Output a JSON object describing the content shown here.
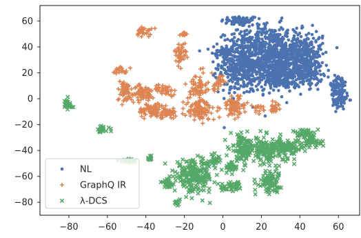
{
  "chart_data": {
    "type": "scatter",
    "title": "",
    "xlabel": "",
    "ylabel": "",
    "xlim": [
      -95,
      71
    ],
    "ylim": [
      -90,
      72
    ],
    "xticks": [
      -80,
      -60,
      -40,
      -20,
      0,
      20,
      40,
      60
    ],
    "yticks": [
      60,
      40,
      20,
      0,
      -20,
      -40,
      -60,
      -80
    ],
    "xtick_labels": [
      "−80",
      "−60",
      "−40",
      "−20",
      "0",
      "20",
      "40",
      "60"
    ],
    "ytick_labels": [
      "60",
      "40",
      "20",
      "0",
      "−20",
      "−40",
      "−60",
      "−80"
    ],
    "grid": false,
    "legend_position": "lower-left",
    "series": [
      {
        "name": "NL",
        "marker": "dot",
        "color": "#4c72b0",
        "clusters": [
          {
            "x": 9,
            "y": 60,
            "sx": 5,
            "sy": 2
          },
          {
            "x": 0,
            "y": 36,
            "sx": 3,
            "sy": 2
          },
          {
            "x": 10,
            "y": 28,
            "sx": 6,
            "sy": 12
          },
          {
            "x": 25,
            "y": 33,
            "sx": 6,
            "sy": 12
          },
          {
            "x": 40,
            "y": 36,
            "sx": 6,
            "sy": 8
          },
          {
            "x": 30,
            "y": 15,
            "sx": 5,
            "sy": 4
          },
          {
            "x": 42,
            "y": 22,
            "sx": 5,
            "sy": 6
          },
          {
            "x": 60,
            "y": 8,
            "sx": 2,
            "sy": 6
          },
          {
            "x": 61,
            "y": -2,
            "sx": 2,
            "sy": 3
          }
        ]
      },
      {
        "name": "GraphQ IR",
        "marker": "plus",
        "color": "#dd8452",
        "clusters": [
          {
            "x": -41,
            "y": 52,
            "sx": 2,
            "sy": 2
          },
          {
            "x": -20,
            "y": 50,
            "sx": 1,
            "sy": 1
          },
          {
            "x": -22,
            "y": 35,
            "sx": 1.5,
            "sy": 4
          },
          {
            "x": -53,
            "y": 22,
            "sx": 2,
            "sy": 1.5
          },
          {
            "x": -51,
            "y": 6,
            "sx": 2,
            "sy": 4
          },
          {
            "x": -42,
            "y": 4,
            "sx": 3,
            "sy": 3
          },
          {
            "x": -30,
            "y": 7,
            "sx": 3,
            "sy": 2
          },
          {
            "x": -36,
            "y": -9,
            "sx": 4,
            "sy": 3
          },
          {
            "x": -13,
            "y": 9,
            "sx": 2,
            "sy": 5
          },
          {
            "x": -12,
            "y": -9,
            "sx": 4,
            "sy": 4
          },
          {
            "x": -3,
            "y": 12,
            "sx": 1.5,
            "sy": 3
          },
          {
            "x": 6,
            "y": -6,
            "sx": 3,
            "sy": 4
          },
          {
            "x": 18,
            "y": -8,
            "sx": 1.5,
            "sy": 1.5
          },
          {
            "x": 27,
            "y": -6,
            "sx": 1.5,
            "sy": 2
          },
          {
            "x": -28,
            "y": -11,
            "sx": 3,
            "sy": 2
          }
        ]
      },
      {
        "name": "λ-DCS",
        "marker": "x",
        "color": "#55a868",
        "clusters": [
          {
            "x": -81,
            "y": -5,
            "sx": 1.5,
            "sy": 2.5
          },
          {
            "x": -63,
            "y": -24,
            "sx": 2,
            "sy": 1.5
          },
          {
            "x": -48,
            "y": -48,
            "sx": 3,
            "sy": 1
          },
          {
            "x": -38,
            "y": -46,
            "sx": 1,
            "sy": 1
          },
          {
            "x": -28,
            "y": -65,
            "sx": 2,
            "sy": 2
          },
          {
            "x": -24,
            "y": -80,
            "sx": 0.8,
            "sy": 1.2
          },
          {
            "x": -15,
            "y": -60,
            "sx": 5,
            "sy": 6
          },
          {
            "x": -5,
            "y": -48,
            "sx": 2,
            "sy": 2
          },
          {
            "x": 4,
            "y": -53,
            "sx": 2,
            "sy": 2
          },
          {
            "x": 5,
            "y": -68,
            "sx": 3,
            "sy": 2
          },
          {
            "x": 10,
            "y": -38,
            "sx": 3,
            "sy": 5
          },
          {
            "x": 24,
            "y": -40,
            "sx": 5,
            "sy": 5
          },
          {
            "x": 24,
            "y": -64,
            "sx": 3,
            "sy": 4
          },
          {
            "x": 35,
            "y": -37,
            "sx": 3,
            "sy": 3
          },
          {
            "x": 43,
            "y": -27,
            "sx": 3,
            "sy": 2
          },
          {
            "x": 46,
            "y": -34,
            "sx": 3,
            "sy": 2
          }
        ]
      }
    ]
  }
}
